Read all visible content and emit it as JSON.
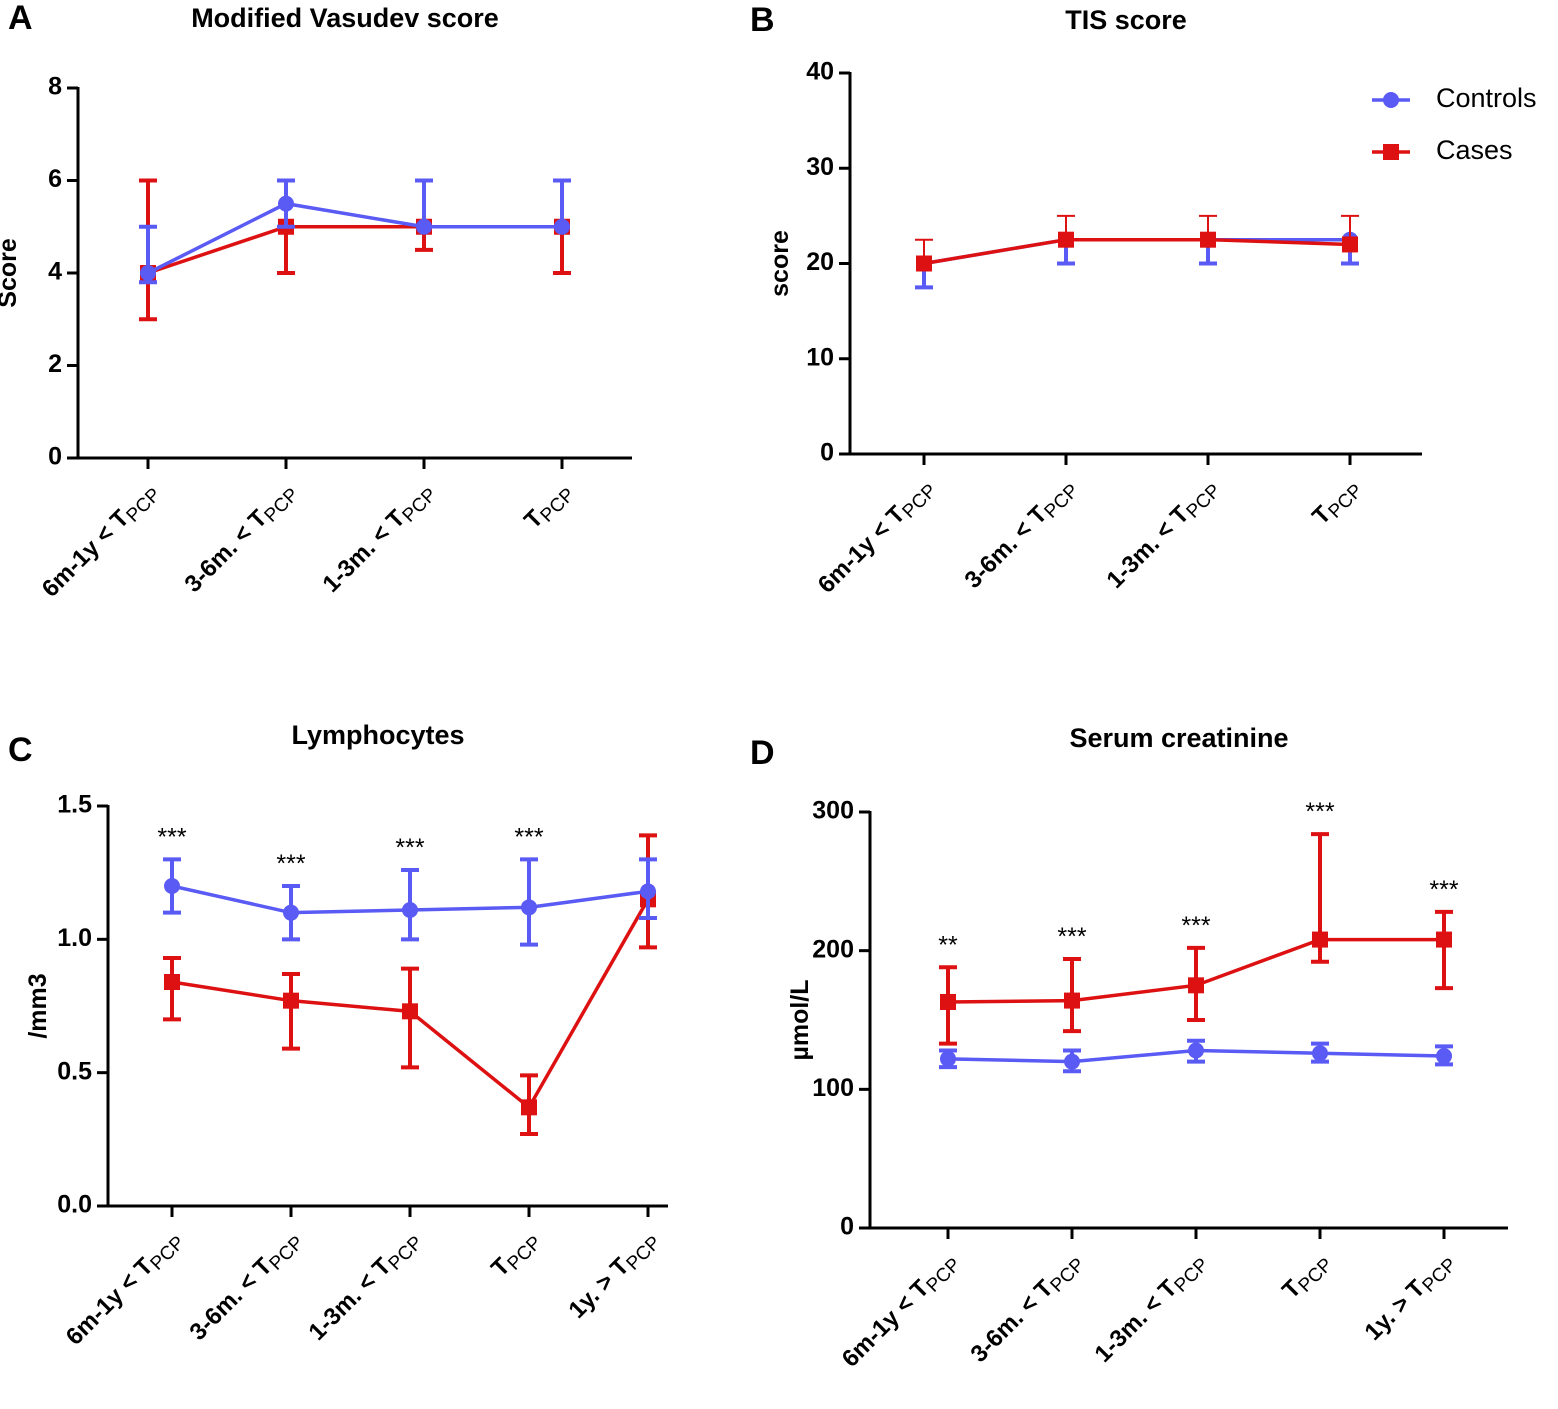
{
  "chart_data": [
    {
      "type": "line",
      "panel": "A",
      "title": "Modified Vasudev score",
      "y_label": "Score",
      "categories": [
        "6m-1y < T",
        "3-6m. < T",
        "1-3m. < T",
        "T"
      ],
      "category_subscript": "PCP",
      "ylim": [
        0,
        8
      ],
      "yticks": [
        0,
        2,
        4,
        6,
        8
      ],
      "series": [
        {
          "name": "Cases",
          "color": "#dd1111",
          "marker": "square",
          "values": [
            4,
            5,
            5,
            5
          ],
          "err_plus": [
            2,
            0,
            0,
            0
          ],
          "err_minus": [
            1,
            1,
            0.5,
            1
          ]
        },
        {
          "name": "Controls",
          "color": "#5a5af5",
          "marker": "circle",
          "values": [
            4,
            5.5,
            5,
            5
          ],
          "err_plus": [
            1,
            0.5,
            1,
            1
          ],
          "err_minus": [
            0.2,
            0.5,
            0,
            0
          ]
        }
      ]
    },
    {
      "type": "line",
      "panel": "B",
      "title": "TIS score",
      "y_label": "score",
      "legend": "top-right",
      "categories": [
        "6m-1y < T",
        "3-6m. < T",
        "1-3m. < T",
        "T"
      ],
      "category_subscript": "PCP",
      "ylim": [
        0,
        40
      ],
      "yticks": [
        0,
        10,
        20,
        30,
        40
      ],
      "series": [
        {
          "name": "Controls",
          "color": "#5a5af5",
          "marker": "circle",
          "values": [
            20,
            22.5,
            22.5,
            22.5
          ],
          "err_plus": [
            0,
            0,
            0,
            0
          ],
          "err_minus": [
            2.5,
            2.5,
            2.5,
            2.5
          ]
        },
        {
          "name": "Cases",
          "color": "#dd1111",
          "marker": "square",
          "values": [
            20,
            22.5,
            22.5,
            22
          ],
          "err_plus": [
            2.5,
            2.5,
            2.5,
            3
          ],
          "err_minus": [
            0,
            0,
            0,
            0
          ]
        }
      ]
    },
    {
      "type": "line",
      "panel": "C",
      "title": "Lymphocytes",
      "y_label": "/mm3",
      "categories": [
        "6m-1y < T",
        "3-6m. < T",
        "1-3m. < T",
        "T",
        "1y. > T"
      ],
      "category_subscript": "PCP",
      "ylim": [
        0,
        1.5
      ],
      "yticks": [
        {
          "value": 0,
          "label": "0.0"
        },
        0.5,
        {
          "value": 1,
          "label": "1.0"
        },
        1.5
      ],
      "significance": [
        "***",
        "***",
        "***",
        "***",
        null
      ],
      "series": [
        {
          "name": "Cases",
          "color": "#dd1111",
          "marker": "square",
          "values": [
            0.84,
            0.77,
            0.73,
            0.37,
            1.15
          ],
          "err_plus": [
            0.09,
            0.1,
            0.16,
            0.12,
            0.24
          ],
          "err_minus": [
            0.14,
            0.18,
            0.21,
            0.1,
            0.18
          ]
        },
        {
          "name": "Controls",
          "color": "#5a5af5",
          "marker": "circle",
          "values": [
            1.2,
            1.1,
            1.11,
            1.12,
            1.18
          ],
          "err_plus": [
            0.1,
            0.1,
            0.15,
            0.18,
            0.12
          ],
          "err_minus": [
            0.1,
            0.1,
            0.11,
            0.14,
            0.1
          ]
        }
      ]
    },
    {
      "type": "line",
      "panel": "D",
      "title": "Serum creatinine",
      "y_label": "µmol/L",
      "categories": [
        "6m-1y < T",
        "3-6m. < T",
        "1-3m. < T",
        "T",
        "1y. > T"
      ],
      "category_subscript": "PCP",
      "ylim": [
        0,
        300
      ],
      "yticks": [
        0,
        100,
        200,
        300
      ],
      "significance": [
        "**",
        "***",
        "***",
        "***",
        "***"
      ],
      "series": [
        {
          "name": "Controls",
          "color": "#5a5af5",
          "marker": "circle",
          "values": [
            122,
            120,
            128,
            126,
            124
          ],
          "err_plus": [
            6,
            8,
            7,
            7,
            7
          ],
          "err_minus": [
            6,
            7,
            8,
            6,
            6
          ]
        },
        {
          "name": "Cases",
          "color": "#dd1111",
          "marker": "square",
          "values": [
            163,
            164,
            175,
            208,
            208
          ],
          "err_plus": [
            25,
            30,
            27,
            76,
            20
          ],
          "err_minus": [
            30,
            22,
            25,
            16,
            35
          ]
        }
      ]
    }
  ]
}
